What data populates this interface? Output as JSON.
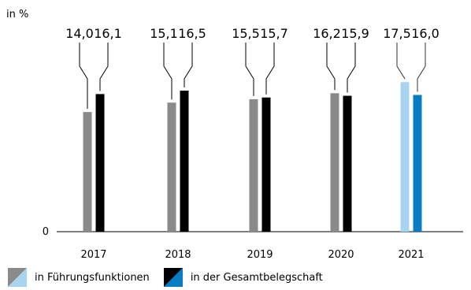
{
  "chart_data": {
    "type": "bar",
    "unit_label": "in %",
    "zero_label": "0",
    "categories": [
      "2017",
      "2018",
      "2019",
      "2020",
      "2021"
    ],
    "series": [
      {
        "name": "in Führungsfunktionen",
        "values": [
          14.0,
          15.1,
          15.5,
          16.2,
          17.5
        ],
        "labels": [
          "14,0",
          "15,1",
          "15,5",
          "16,2",
          "17,5"
        ],
        "color": "#8a8a8a",
        "highlight_color": "#a9d4f0"
      },
      {
        "name": "in der Gesamtbelegschaft",
        "values": [
          16.1,
          16.5,
          15.7,
          15.9,
          16.0
        ],
        "labels": [
          "16,1",
          "16,5",
          "15,7",
          "15,9",
          "16,0"
        ],
        "color": "#000000",
        "highlight_color": "#0a7cc4"
      }
    ],
    "highlight_category": "2021",
    "ylim": [
      0,
      26
    ],
    "grid": false,
    "legend_position": "bottom-left"
  },
  "legend": {
    "item1": "in Führungsfunktionen",
    "item2": "in der Gesamtbelegschaft"
  }
}
